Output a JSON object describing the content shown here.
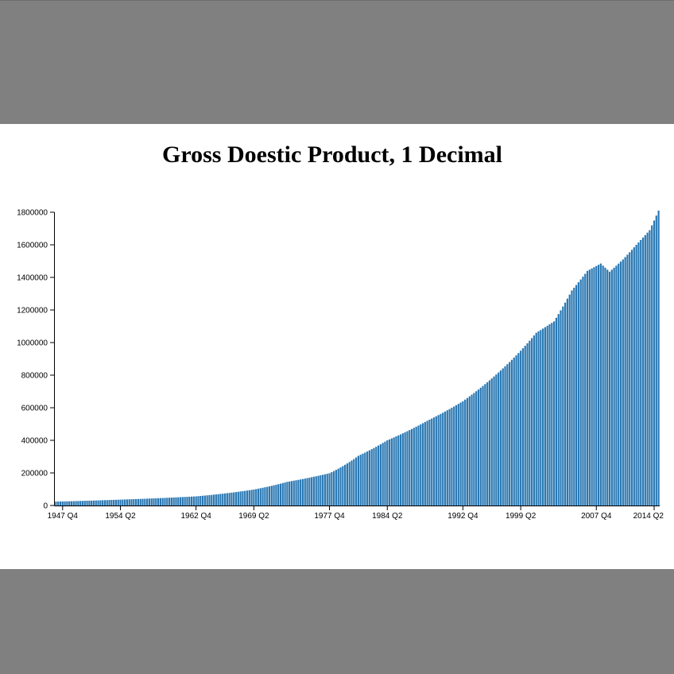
{
  "chart_data": {
    "type": "bar",
    "title": "Gross Doestic Product, 1 Decimal",
    "xlabel": "",
    "ylabel": "",
    "ylim": [
      0,
      1800000
    ],
    "yticks": [
      0,
      200000,
      400000,
      600000,
      800000,
      1000000,
      1200000,
      1400000,
      1600000,
      1800000
    ],
    "xticks": [
      "1947 Q4",
      "1954 Q2",
      "1962 Q4",
      "1969 Q2",
      "1977 Q4",
      "1984 Q2",
      "1992 Q4",
      "1999 Q2",
      "2007 Q4",
      "2014 Q2"
    ],
    "first_period": "1947 Q1",
    "last_period": "2014 Q4",
    "bar_color": "#2a78b3",
    "grid": false,
    "legend": "none",
    "anchors": [
      {
        "period": "1947 Q1",
        "value": 24000
      },
      {
        "period": "1954 Q2",
        "value": 36000
      },
      {
        "period": "1962 Q4",
        "value": 56000
      },
      {
        "period": "1969 Q2",
        "value": 98000
      },
      {
        "period": "1973 Q1",
        "value": 145000
      },
      {
        "period": "1977 Q4",
        "value": 198000
      },
      {
        "period": "1981 Q1",
        "value": 305000
      },
      {
        "period": "1984 Q2",
        "value": 400000
      },
      {
        "period": "1988 Q4",
        "value": 520000
      },
      {
        "period": "1992 Q4",
        "value": 640000
      },
      {
        "period": "1996 Q1",
        "value": 780000
      },
      {
        "period": "1999 Q2",
        "value": 950000
      },
      {
        "period": "2001 Q1",
        "value": 1060000
      },
      {
        "period": "2003 Q1",
        "value": 1130000
      },
      {
        "period": "2005 Q1",
        "value": 1320000
      },
      {
        "period": "2006 Q4",
        "value": 1440000
      },
      {
        "period": "2008 Q2",
        "value": 1485000
      },
      {
        "period": "2009 Q2",
        "value": 1435000
      },
      {
        "period": "2010 Q4",
        "value": 1510000
      },
      {
        "period": "2012 Q2",
        "value": 1600000
      },
      {
        "period": "2013 Q4",
        "value": 1690000
      },
      {
        "period": "2014 Q4",
        "value": 1810000
      }
    ]
  }
}
